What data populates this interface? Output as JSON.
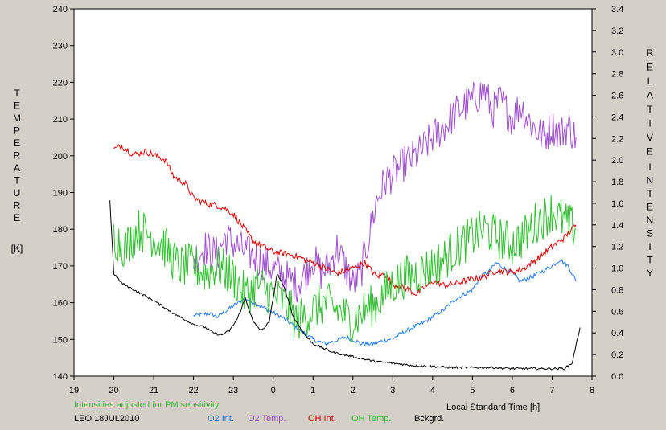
{
  "chart_data": {
    "type": "line",
    "left_axis_title_letters": [
      "T",
      "E",
      "M",
      "P",
      "E",
      "R",
      "A",
      "T",
      "U",
      "R",
      "E"
    ],
    "left_axis_unit": "[K]",
    "right_axis_title_word1": [
      "R",
      "E",
      "L",
      "A",
      "T",
      "I",
      "V",
      "E"
    ],
    "right_axis_title_word2": [
      "I",
      "N",
      "T",
      "E",
      "N",
      "S",
      "I",
      "T",
      "Y"
    ],
    "xlabel": "Local Standard Time [h]",
    "note": "Intensities adjusted for PM sensitivity",
    "station": "LEO 18JUL2010",
    "x_range": [
      19,
      32
    ],
    "x_tick_labels": [
      "19",
      "20",
      "21",
      "22",
      "23",
      "0",
      "1",
      "2",
      "3",
      "4",
      "5",
      "6",
      "7",
      "8"
    ],
    "y_left_range": [
      140,
      240
    ],
    "y_left_ticks": [
      "140",
      "150",
      "160",
      "170",
      "180",
      "190",
      "200",
      "210",
      "220",
      "230",
      "240"
    ],
    "y_right_range": [
      0,
      3.4
    ],
    "y_right_ticks": [
      "0.0",
      "0.2",
      "0.4",
      "0.6",
      "0.8",
      "1.0",
      "1.2",
      "1.4",
      "1.6",
      "1.8",
      "2.0",
      "2.2",
      "2.4",
      "2.6",
      "2.8",
      "3.0",
      "3.2",
      "3.4"
    ],
    "series": [
      {
        "name": "O2 Int.",
        "axis": "right",
        "color": "#1e78e6",
        "noise": 0.02,
        "x": [
          22.0,
          22.4,
          22.6,
          22.8,
          23.0,
          23.3,
          24.2,
          24.7,
          25.0,
          25.3,
          25.5,
          25.8,
          26.0,
          26.2,
          26.5,
          27.0,
          27.5,
          27.8,
          28.0,
          28.3,
          28.6,
          29.0,
          29.2,
          29.4,
          29.6,
          29.8,
          30.0,
          30.2,
          30.5,
          30.8,
          31.0,
          31.2,
          31.4,
          31.6
        ],
        "y": [
          0.56,
          0.58,
          0.55,
          0.6,
          0.65,
          0.72,
          0.55,
          0.42,
          0.34,
          0.3,
          0.32,
          0.36,
          0.34,
          0.3,
          0.3,
          0.35,
          0.45,
          0.5,
          0.55,
          0.62,
          0.72,
          0.8,
          0.92,
          0.96,
          1.05,
          1.0,
          0.95,
          0.88,
          0.92,
          0.98,
          1.02,
          1.08,
          1.02,
          0.88
        ]
      },
      {
        "name": "O2 Temp.",
        "axis": "left",
        "color": "#a050d0",
        "noise": 5,
        "x": [
          22.0,
          22.3,
          22.6,
          22.8,
          23.0,
          24.6,
          24.8,
          25.0,
          25.2,
          25.4,
          25.6,
          25.8,
          26.0,
          26.2,
          26.4,
          26.6,
          26.8,
          27.0,
          27.3,
          27.6,
          28.0,
          28.3,
          28.6,
          29.0,
          29.3,
          29.5,
          29.7,
          30.0,
          30.2,
          30.4,
          30.6,
          30.8,
          31.0,
          31.2,
          31.4,
          31.6
        ],
        "y": [
          172,
          175,
          173,
          178,
          176,
          165,
          168,
          172,
          168,
          170,
          175,
          170,
          165,
          168,
          178,
          188,
          193,
          195,
          198,
          200,
          205,
          208,
          212,
          215,
          218,
          212,
          215,
          210,
          214,
          210,
          207,
          205,
          208,
          206,
          208,
          205
        ]
      },
      {
        "name": "OH Int.",
        "axis": "right",
        "color": "#dc0000",
        "noise": 0.03,
        "x": [
          20.0,
          20.2,
          20.5,
          20.8,
          21.0,
          21.3,
          21.5,
          21.8,
          22.0,
          22.3,
          22.6,
          22.8,
          23.0,
          23.2,
          23.5,
          24.0,
          24.5,
          25.0,
          25.3,
          25.6,
          26.0,
          26.3,
          26.6,
          26.8,
          27.0,
          27.3,
          27.6,
          28.0,
          28.3,
          28.6,
          29.0,
          29.3,
          29.6,
          30.0,
          30.3,
          30.6,
          31.0,
          31.3,
          31.6
        ],
        "y": [
          2.1,
          2.13,
          2.05,
          2.08,
          2.05,
          2.0,
          1.85,
          1.78,
          1.65,
          1.6,
          1.58,
          1.55,
          1.5,
          1.4,
          1.25,
          1.15,
          1.12,
          1.05,
          1.0,
          0.95,
          1.0,
          1.05,
          0.92,
          0.95,
          0.85,
          0.82,
          0.76,
          0.88,
          0.84,
          0.86,
          0.9,
          0.92,
          0.98,
          0.96,
          1.0,
          1.08,
          1.2,
          1.28,
          1.4
        ]
      },
      {
        "name": "OH Temp.",
        "axis": "left",
        "color": "#30c030",
        "noise": 6,
        "x": [
          20.0,
          20.3,
          20.6,
          21.0,
          21.3,
          21.6,
          22.0,
          22.3,
          22.6,
          23.0,
          23.3,
          23.6,
          24.0,
          24.3,
          24.6,
          25.0,
          25.3,
          25.6,
          26.0,
          26.3,
          26.6,
          27.0,
          27.3,
          27.6,
          28.0,
          28.3,
          28.6,
          29.0,
          29.3,
          29.6,
          30.0,
          30.3,
          30.6,
          31.0,
          31.3,
          31.6
        ],
        "y": [
          178,
          175,
          180,
          178,
          175,
          170,
          170,
          168,
          170,
          167,
          162,
          165,
          162,
          160,
          155,
          158,
          160,
          158,
          155,
          158,
          160,
          165,
          167,
          168,
          170,
          172,
          175,
          178,
          180,
          178,
          176,
          178,
          182,
          185,
          182,
          180
        ]
      },
      {
        "name": "Bckgrd.",
        "axis": "right",
        "color": "#000000",
        "noise": 0.01,
        "x": [
          19.9,
          20.0,
          20.2,
          20.5,
          21.0,
          21.5,
          22.0,
          22.3,
          22.5,
          22.7,
          22.9,
          23.1,
          23.3,
          23.5,
          23.7,
          23.9,
          24.1,
          24.3,
          24.5,
          24.8,
          25.0,
          25.5,
          26.0,
          26.5,
          27.0,
          27.5,
          28.0,
          28.5,
          29.0,
          29.5,
          30.0,
          30.5,
          31.0,
          31.3,
          31.5,
          31.7
        ],
        "y": [
          1.63,
          0.95,
          0.86,
          0.8,
          0.7,
          0.58,
          0.48,
          0.45,
          0.4,
          0.38,
          0.42,
          0.53,
          0.72,
          0.5,
          0.42,
          0.5,
          0.95,
          0.8,
          0.55,
          0.38,
          0.3,
          0.22,
          0.18,
          0.14,
          0.12,
          0.1,
          0.09,
          0.08,
          0.08,
          0.08,
          0.07,
          0.07,
          0.07,
          0.07,
          0.12,
          0.45
        ]
      }
    ],
    "grid": false
  }
}
